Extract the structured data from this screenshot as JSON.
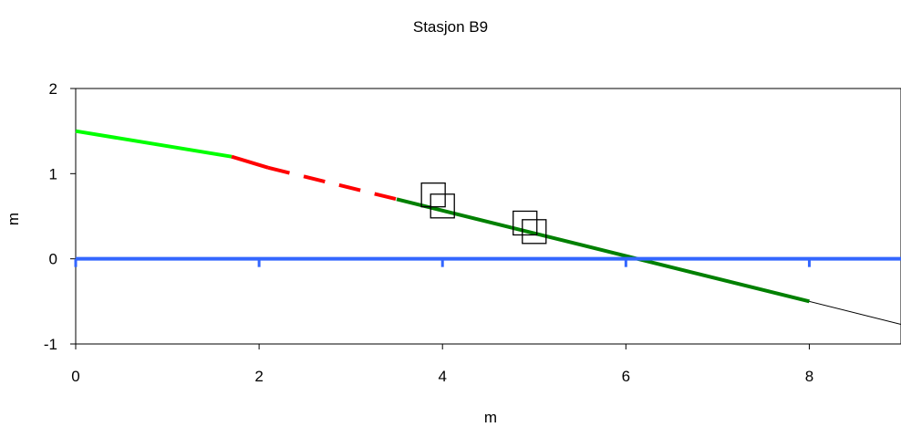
{
  "chart_data": {
    "type": "line",
    "title": "Stasjon B9",
    "xlabel": "m",
    "ylabel": "m",
    "xlim": [
      0,
      9
    ],
    "ylim": [
      -1,
      2
    ],
    "xticks": [
      "0",
      "2",
      "4",
      "6",
      "8"
    ],
    "yticks": [
      "2",
      "1",
      "0",
      "-1"
    ],
    "grid": false,
    "series": [
      {
        "color": "#00ff00",
        "style": "solid",
        "x": [
          0,
          1.7
        ],
        "y": [
          1.5,
          1.2
        ]
      },
      {
        "color": "#ff0000",
        "style": "solid",
        "x": [
          1.7,
          2.1
        ],
        "y": [
          1.2,
          1.07
        ]
      },
      {
        "color": "#ff0000",
        "style": "dashed",
        "x": [
          2.1,
          3.5
        ],
        "y": [
          1.07,
          0.7
        ]
      },
      {
        "color": "#008000",
        "style": "solid",
        "x": [
          3.5,
          8.0
        ],
        "y": [
          0.7,
          -0.5
        ]
      },
      {
        "color": "#000000",
        "style": "thin",
        "x": [
          8.0,
          9.0
        ],
        "y": [
          -0.5,
          -0.77
        ]
      },
      {
        "color": "#3366ff",
        "style": "solid",
        "x": [
          0,
          9.0
        ],
        "y": [
          0,
          0
        ]
      }
    ],
    "markers": [
      {
        "shape": "square",
        "x": 3.9,
        "y": 0.75
      },
      {
        "shape": "square",
        "x": 4.0,
        "y": 0.62
      },
      {
        "shape": "square",
        "x": 4.9,
        "y": 0.42
      },
      {
        "shape": "square",
        "x": 5.0,
        "y": 0.32
      }
    ]
  }
}
